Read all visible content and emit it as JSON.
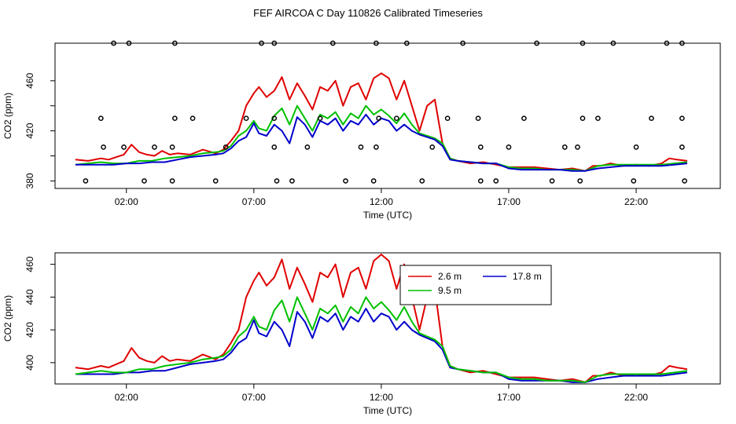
{
  "title": "FEF AIRCOA C  Day 110826  Calibrated Timeseries",
  "chart_data": [
    {
      "type": "line",
      "xlabel": "Time (UTC)",
      "ylabel": "CO2 (ppm)",
      "x_ticks": [
        "02:00",
        "07:00",
        "12:00",
        "17:00",
        "22:00"
      ],
      "x_tick_hours": [
        2,
        7,
        12,
        17,
        22
      ],
      "y_ticks": [
        380,
        400,
        420,
        440,
        460
      ],
      "y_tick_labels": [
        "380",
        "",
        "420",
        "",
        "460"
      ],
      "xlim": [
        -0.8,
        25.3
      ],
      "ylim": [
        374,
        490
      ],
      "legend": "none",
      "series": [
        {
          "color": "#e00000",
          "x": [
            0,
            0.5,
            1,
            1.3,
            1.6,
            1.9,
            2.2,
            2.5,
            2.8,
            3.1,
            3.4,
            3.7,
            4,
            4.5,
            5,
            5.5,
            5.8,
            6.1,
            6.4,
            6.7,
            7,
            7.2,
            7.5,
            7.8,
            8.1,
            8.4,
            8.7,
            9,
            9.3,
            9.6,
            9.9,
            10.2,
            10.5,
            10.8,
            11.1,
            11.4,
            11.7,
            12,
            12.3,
            12.6,
            12.9,
            13.2,
            13.5,
            13.8,
            14.1,
            14.4,
            14.7,
            15,
            15.5,
            16,
            16.5,
            17,
            17.5,
            18,
            18.5,
            19,
            19.5,
            20,
            20.3,
            20.6,
            21,
            21.5,
            22,
            22.5,
            23,
            23.3,
            23.6,
            24
          ],
          "y": [
            397,
            396,
            398,
            397,
            399,
            401,
            409,
            403,
            401,
            400,
            404,
            401,
            402,
            401,
            405,
            402,
            405,
            412,
            420,
            440,
            450,
            455,
            447,
            452,
            463,
            445,
            458,
            448,
            437,
            455,
            452,
            460,
            440,
            455,
            458,
            445,
            462,
            466,
            462,
            445,
            460,
            440,
            420,
            440,
            445,
            410,
            398,
            396,
            394,
            395,
            393,
            391,
            391,
            391,
            390,
            389,
            390,
            388,
            392,
            392,
            394,
            392,
            393,
            392,
            394,
            398,
            397,
            396
          ]
        },
        {
          "color": "#00c000",
          "x": [
            0,
            0.5,
            1,
            1.5,
            2,
            2.5,
            3,
            3.5,
            4,
            4.5,
            5,
            5.5,
            5.8,
            6.1,
            6.4,
            6.7,
            7,
            7.2,
            7.5,
            7.8,
            8.1,
            8.4,
            8.7,
            9,
            9.3,
            9.6,
            9.9,
            10.2,
            10.5,
            10.8,
            11.1,
            11.4,
            11.7,
            12,
            12.3,
            12.6,
            12.9,
            13.2,
            13.5,
            13.8,
            14.1,
            14.4,
            14.7,
            15,
            15.5,
            16,
            16.5,
            17,
            17.5,
            18,
            18.5,
            19,
            19.5,
            20,
            20.5,
            21,
            21.5,
            22,
            22.5,
            23,
            23.5,
            24
          ],
          "y": [
            393,
            394,
            395,
            394,
            394,
            396,
            396,
            398,
            399,
            400,
            402,
            403,
            404,
            408,
            416,
            420,
            428,
            422,
            420,
            432,
            438,
            425,
            440,
            430,
            420,
            433,
            430,
            435,
            425,
            434,
            430,
            440,
            433,
            437,
            432,
            426,
            434,
            425,
            418,
            416,
            414,
            410,
            398,
            396,
            395,
            394,
            394,
            391,
            390,
            390,
            389,
            389,
            389,
            388,
            392,
            393,
            393,
            393,
            393,
            393,
            394,
            395
          ]
        },
        {
          "color": "#0000cc",
          "x": [
            0,
            0.5,
            1,
            1.5,
            2,
            2.5,
            3,
            3.5,
            4,
            4.5,
            5,
            5.5,
            5.8,
            6.1,
            6.4,
            6.7,
            7,
            7.2,
            7.5,
            7.8,
            8.1,
            8.4,
            8.7,
            9,
            9.3,
            9.6,
            9.9,
            10.2,
            10.5,
            10.8,
            11.1,
            11.4,
            11.7,
            12,
            12.3,
            12.6,
            12.9,
            13.2,
            13.5,
            13.8,
            14.1,
            14.4,
            14.7,
            15,
            15.5,
            16,
            16.5,
            17,
            17.5,
            18,
            18.5,
            19,
            19.5,
            20,
            20.5,
            21,
            21.5,
            22,
            22.5,
            23,
            23.5,
            24
          ],
          "y": [
            393,
            393,
            393,
            393,
            394,
            394,
            395,
            395,
            397,
            399,
            400,
            401,
            402,
            406,
            412,
            415,
            426,
            418,
            416,
            425,
            420,
            410,
            431,
            425,
            415,
            428,
            425,
            430,
            420,
            428,
            425,
            433,
            425,
            430,
            428,
            420,
            425,
            420,
            417,
            415,
            413,
            408,
            397,
            396,
            395,
            394,
            394,
            390,
            389,
            389,
            389,
            389,
            388,
            388,
            390,
            391,
            392,
            392,
            392,
            392,
            393,
            394
          ]
        }
      ],
      "points": {
        "x": [
          1.5,
          2.1,
          3.9,
          7.3,
          7.8,
          10.1,
          11.8,
          13,
          15.2,
          18.1,
          19.9,
          21.1,
          23.2,
          23.8,
          0.4,
          2.7,
          3.8,
          5.5,
          7.9,
          8.5,
          10.6,
          11.7,
          13.6,
          15.9,
          16.5,
          18.7,
          19.8,
          21.9,
          23.9,
          1.1,
          1.9,
          3.1,
          3.8,
          5.9,
          7.8,
          9.1,
          11.2,
          11.8,
          14,
          15.9,
          17,
          19.2,
          19.7,
          22,
          23.8,
          1,
          3.9,
          4.6,
          6.7,
          7.8,
          9.6,
          11.9,
          12.6,
          14.6,
          15.8,
          17.6,
          19.9,
          20.5,
          22.6,
          23.8
        ],
        "y": [
          490,
          490,
          490,
          490,
          490,
          490,
          490,
          490,
          490,
          490,
          490,
          490,
          490,
          490,
          380,
          380,
          380,
          380,
          380,
          380,
          380,
          380,
          380,
          380,
          380,
          380,
          380,
          380,
          380,
          407,
          407,
          407,
          407,
          407,
          407,
          407,
          407,
          407,
          407,
          407,
          407,
          407,
          407,
          407,
          407,
          430,
          430,
          430,
          430,
          430,
          430,
          430,
          430,
          430,
          430,
          430,
          430,
          430,
          430,
          430
        ]
      }
    },
    {
      "type": "line",
      "xlabel": "Time (UTC)",
      "ylabel": "CO2 (ppm)",
      "x_ticks": [
        "02:00",
        "07:00",
        "12:00",
        "17:00",
        "22:00"
      ],
      "x_tick_hours": [
        2,
        7,
        12,
        17,
        22
      ],
      "y_ticks": [
        400,
        420,
        440,
        460
      ],
      "y_tick_labels": [
        "400",
        "420",
        "440",
        "460"
      ],
      "xlim": [
        -0.8,
        25.3
      ],
      "ylim": [
        387,
        467
      ],
      "legend": "top-center",
      "series": [
        {
          "name": "2.6 m",
          "color": "#e00000",
          "x": [
            0,
            0.5,
            1,
            1.3,
            1.6,
            1.9,
            2.2,
            2.5,
            2.8,
            3.1,
            3.4,
            3.7,
            4,
            4.5,
            5,
            5.5,
            5.8,
            6.1,
            6.4,
            6.7,
            7,
            7.2,
            7.5,
            7.8,
            8.1,
            8.4,
            8.7,
            9,
            9.3,
            9.6,
            9.9,
            10.2,
            10.5,
            10.8,
            11.1,
            11.4,
            11.7,
            12,
            12.3,
            12.6,
            12.9,
            13.2,
            13.5,
            13.8,
            14.1,
            14.4,
            14.7,
            15,
            15.5,
            16,
            16.5,
            17,
            17.5,
            18,
            18.5,
            19,
            19.5,
            20,
            20.3,
            20.6,
            21,
            21.5,
            22,
            22.5,
            23,
            23.3,
            23.6,
            24
          ],
          "y": [
            397,
            396,
            398,
            397,
            399,
            401,
            409,
            403,
            401,
            400,
            404,
            401,
            402,
            401,
            405,
            402,
            405,
            412,
            420,
            440,
            450,
            455,
            447,
            452,
            463,
            445,
            458,
            448,
            437,
            455,
            452,
            460,
            440,
            455,
            458,
            445,
            462,
            466,
            462,
            445,
            460,
            440,
            420,
            440,
            445,
            410,
            398,
            396,
            394,
            395,
            393,
            391,
            391,
            391,
            390,
            389,
            390,
            388,
            392,
            392,
            394,
            392,
            393,
            392,
            394,
            398,
            397,
            396
          ]
        },
        {
          "name": "17.8 m",
          "color": "#0000cc",
          "x": [
            0,
            0.5,
            1,
            1.5,
            2,
            2.5,
            3,
            3.5,
            4,
            4.5,
            5,
            5.5,
            5.8,
            6.1,
            6.4,
            6.7,
            7,
            7.2,
            7.5,
            7.8,
            8.1,
            8.4,
            8.7,
            9,
            9.3,
            9.6,
            9.9,
            10.2,
            10.5,
            10.8,
            11.1,
            11.4,
            11.7,
            12,
            12.3,
            12.6,
            12.9,
            13.2,
            13.5,
            13.8,
            14.1,
            14.4,
            14.7,
            15,
            15.5,
            16,
            16.5,
            17,
            17.5,
            18,
            18.5,
            19,
            19.5,
            20,
            20.5,
            21,
            21.5,
            22,
            22.5,
            23,
            23.5,
            24
          ],
          "y": [
            393,
            393,
            393,
            393,
            394,
            394,
            395,
            395,
            397,
            399,
            400,
            401,
            402,
            406,
            412,
            415,
            426,
            418,
            416,
            425,
            420,
            410,
            431,
            425,
            415,
            428,
            425,
            430,
            420,
            428,
            425,
            433,
            425,
            430,
            428,
            420,
            425,
            420,
            417,
            415,
            413,
            408,
            397,
            396,
            395,
            394,
            394,
            390,
            389,
            389,
            389,
            389,
            388,
            388,
            390,
            391,
            392,
            392,
            392,
            392,
            393,
            394
          ]
        },
        {
          "name": "9.5 m",
          "color": "#00c000",
          "x": [
            0,
            0.5,
            1,
            1.5,
            2,
            2.5,
            3,
            3.5,
            4,
            4.5,
            5,
            5.5,
            5.8,
            6.1,
            6.4,
            6.7,
            7,
            7.2,
            7.5,
            7.8,
            8.1,
            8.4,
            8.7,
            9,
            9.3,
            9.6,
            9.9,
            10.2,
            10.5,
            10.8,
            11.1,
            11.4,
            11.7,
            12,
            12.3,
            12.6,
            12.9,
            13.2,
            13.5,
            13.8,
            14.1,
            14.4,
            14.7,
            15,
            15.5,
            16,
            16.5,
            17,
            17.5,
            18,
            18.5,
            19,
            19.5,
            20,
            20.5,
            21,
            21.5,
            22,
            22.5,
            23,
            23.5,
            24
          ],
          "y": [
            393,
            394,
            395,
            394,
            394,
            396,
            396,
            398,
            399,
            400,
            402,
            403,
            404,
            408,
            416,
            420,
            428,
            422,
            420,
            432,
            438,
            425,
            440,
            430,
            420,
            433,
            430,
            435,
            425,
            434,
            430,
            440,
            433,
            437,
            432,
            426,
            434,
            425,
            418,
            416,
            414,
            410,
            398,
            396,
            395,
            394,
            394,
            391,
            390,
            390,
            389,
            389,
            389,
            388,
            392,
            393,
            393,
            393,
            393,
            393,
            394,
            395
          ]
        }
      ]
    }
  ]
}
